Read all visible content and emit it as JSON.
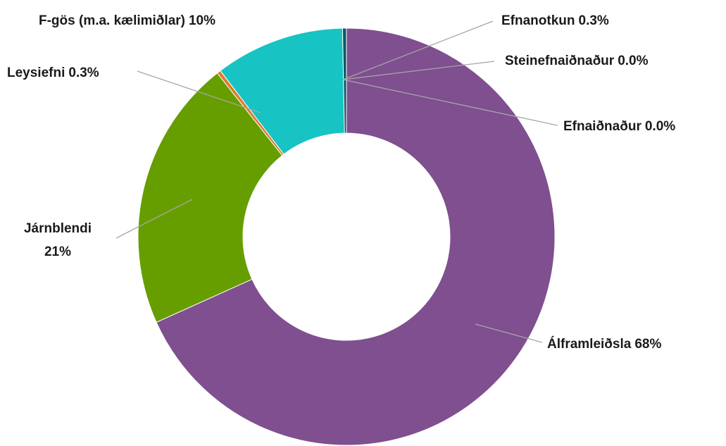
{
  "chart_data": {
    "type": "donut",
    "categories": [
      "Steinefnaiðnaður",
      "Efnaiðnaður",
      "Álframleiðsla",
      "Járnblendi",
      "Leysiefni",
      "F-gös (m.a. kælimiðlar)",
      "Efnanotkun"
    ],
    "values": [
      0.0,
      0.0,
      68,
      21,
      0.3,
      10,
      0.3
    ],
    "value_labels": [
      "0.0%",
      "0.0%",
      "68%",
      "21%",
      "0.3%",
      "10%",
      "0.3%"
    ],
    "colors": [
      "#7e57a6",
      "#5b8fc9",
      "#7f4f8f",
      "#669e00",
      "#e07b2a",
      "#17c3c3",
      "#0d5866"
    ]
  }
}
